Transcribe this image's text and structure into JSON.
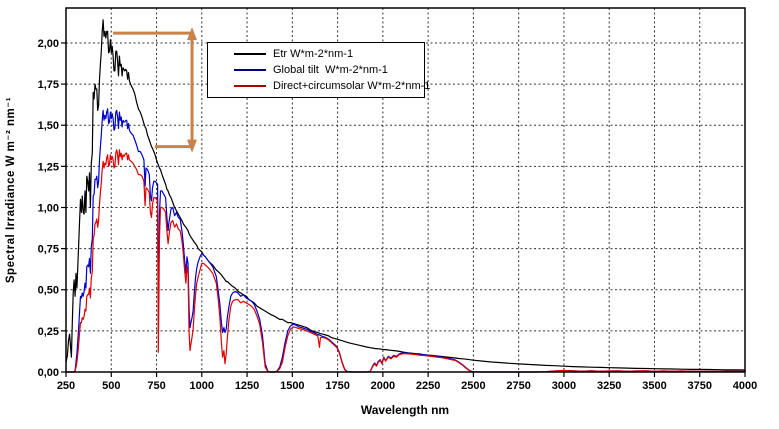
{
  "chart_data": {
    "type": "line",
    "title": "",
    "xlabel": "Wavelength nm",
    "ylabel": "Spectral Irradiance W m⁻² nm⁻¹",
    "xlim": [
      250,
      4000
    ],
    "ylim": [
      0,
      2.2125
    ],
    "y_tick_max": 2.0,
    "grid": "dotted grid on both axes, solid black plot border",
    "background": "#ffffff",
    "x_tick_labels": [
      "250",
      "500",
      "750",
      "1000",
      "1250",
      "1500",
      "1750",
      "2000",
      "2250",
      "2500",
      "2750",
      "3000",
      "3250",
      "3500",
      "3750",
      "4000"
    ],
    "y_tick_labels": [
      "0,00",
      "0,25",
      "0,50",
      "0,75",
      "1,00",
      "1,25",
      "1,50",
      "1,75",
      "2,00"
    ],
    "legend_position": "upper-left inside plot",
    "series": [
      {
        "id": "etr",
        "name": "Etr W*m-2*nm-1",
        "color": "#000000",
        "legend_color": "#000000"
      },
      {
        "id": "global-tilt",
        "name": "Global tilt  W*m-2*nm-1",
        "color": "#0000CC",
        "legend_color": "#000080"
      },
      {
        "id": "direct-circumsolar",
        "name": "Direct+circumsolar W*m-2*nm-1",
        "color": "#E00000",
        "legend_color": "#B00000"
      }
    ],
    "annotation": {
      "type": "vertical-double-arrow",
      "color": "#C8824A",
      "x_nm": 946,
      "y_top": 2.06,
      "y_bottom": 1.37,
      "top_ref_line_from_nm": 510,
      "bottom_ref_line_from_nm": 741
    },
    "points_columns": [
      "wavelength_nm",
      "etr",
      "global_tilt",
      "direct_circumsolar"
    ],
    "points": [
      [
        250,
        0.06,
        0,
        0
      ],
      [
        258,
        0.1,
        0,
        0
      ],
      [
        264,
        0.19,
        0,
        0
      ],
      [
        270,
        0.23,
        0,
        0
      ],
      [
        276,
        0.14,
        0,
        0
      ],
      [
        280,
        0.09,
        0,
        0
      ],
      [
        285,
        0.3,
        0,
        0
      ],
      [
        290,
        0.48,
        0,
        0
      ],
      [
        295,
        0.56,
        0,
        0
      ],
      [
        300,
        0.46,
        0.01,
        0.005
      ],
      [
        305,
        0.6,
        0.06,
        0.03
      ],
      [
        310,
        0.51,
        0.11,
        0.06
      ],
      [
        315,
        0.64,
        0.19,
        0.11
      ],
      [
        320,
        0.78,
        0.27,
        0.17
      ],
      [
        325,
        0.92,
        0.37,
        0.24
      ],
      [
        330,
        1.05,
        0.46,
        0.3
      ],
      [
        335,
        0.97,
        0.45,
        0.3
      ],
      [
        340,
        1.07,
        0.48,
        0.33
      ],
      [
        345,
        0.97,
        0.46,
        0.32
      ],
      [
        350,
        0.96,
        0.49,
        0.34
      ],
      [
        355,
        1.1,
        0.54,
        0.38
      ],
      [
        360,
        0.97,
        0.51,
        0.37
      ],
      [
        365,
        1.19,
        0.64,
        0.46
      ],
      [
        370,
        1.16,
        0.65,
        0.47
      ],
      [
        375,
        1.1,
        0.64,
        0.47
      ],
      [
        380,
        1.21,
        0.69,
        0.51
      ],
      [
        385,
        1.0,
        0.6,
        0.45
      ],
      [
        390,
        1.27,
        0.76,
        0.57
      ],
      [
        395,
        1.33,
        0.81,
        0.61
      ],
      [
        400,
        1.7,
        1.07,
        0.81
      ],
      [
        405,
        1.66,
        1.08,
        0.83
      ],
      [
        410,
        1.75,
        1.17,
        0.9
      ],
      [
        415,
        1.72,
        1.17,
        0.91
      ],
      [
        420,
        1.72,
        1.19,
        0.93
      ],
      [
        425,
        1.59,
        1.12,
        0.88
      ],
      [
        430,
        1.62,
        1.16,
        0.92
      ],
      [
        435,
        1.78,
        1.29,
        1.02
      ],
      [
        440,
        1.87,
        1.37,
        1.09
      ],
      [
        445,
        1.95,
        1.44,
        1.15
      ],
      [
        450,
        2.07,
        1.53,
        1.23
      ],
      [
        455,
        2.14,
        1.59,
        1.28
      ],
      [
        460,
        2.04,
        1.53,
        1.24
      ],
      [
        465,
        2.07,
        1.56,
        1.27
      ],
      [
        470,
        2.03,
        1.54,
        1.26
      ],
      [
        475,
        2.07,
        1.58,
        1.3
      ],
      [
        480,
        2.07,
        1.6,
        1.32
      ],
      [
        485,
        1.94,
        1.51,
        1.25
      ],
      [
        490,
        1.95,
        1.52,
        1.26
      ],
      [
        495,
        2.02,
        1.58,
        1.32
      ],
      [
        500,
        1.94,
        1.54,
        1.29
      ],
      [
        505,
        1.98,
        1.57,
        1.31
      ],
      [
        510,
        1.92,
        1.54,
        1.29
      ],
      [
        515,
        1.83,
        1.47,
        1.24
      ],
      [
        520,
        1.83,
        1.48,
        1.25
      ],
      [
        525,
        1.95,
        1.58,
        1.33
      ],
      [
        530,
        1.95,
        1.59,
        1.35
      ],
      [
        535,
        1.89,
        1.55,
        1.32
      ],
      [
        540,
        1.8,
        1.48,
        1.26
      ],
      [
        545,
        1.92,
        1.58,
        1.35
      ],
      [
        550,
        1.86,
        1.53,
        1.31
      ],
      [
        555,
        1.87,
        1.55,
        1.33
      ],
      [
        560,
        1.8,
        1.49,
        1.29
      ],
      [
        565,
        1.85,
        1.53,
        1.32
      ],
      [
        570,
        1.84,
        1.52,
        1.31
      ],
      [
        575,
        1.83,
        1.52,
        1.32
      ],
      [
        580,
        1.84,
        1.53,
        1.33
      ],
      [
        585,
        1.83,
        1.53,
        1.33
      ],
      [
        590,
        1.78,
        1.48,
        1.29
      ],
      [
        595,
        1.82,
        1.51,
        1.32
      ],
      [
        600,
        1.77,
        1.47,
        1.29
      ],
      [
        610,
        1.74,
        1.45,
        1.28
      ],
      [
        620,
        1.72,
        1.44,
        1.27
      ],
      [
        630,
        1.69,
        1.41,
        1.25
      ],
      [
        640,
        1.64,
        1.38,
        1.23
      ],
      [
        650,
        1.6,
        1.34,
        1.2
      ],
      [
        660,
        1.58,
        1.34,
        1.2
      ],
      [
        670,
        1.55,
        1.32,
        1.19
      ],
      [
        680,
        1.51,
        1.29,
        1.16
      ],
      [
        687,
        1.49,
        1.13,
        1.01
      ],
      [
        692,
        1.48,
        1.24,
        1.12
      ],
      [
        700,
        1.44,
        1.23,
        1.11
      ],
      [
        710,
        1.41,
        1.2,
        1.09
      ],
      [
        716,
        1.39,
        1.07,
        0.97
      ],
      [
        722,
        1.37,
        1.04,
        0.94
      ],
      [
        728,
        1.36,
        1.12,
        1.02
      ],
      [
        735,
        1.34,
        1.16,
        1.06
      ],
      [
        742,
        1.32,
        1.16,
        1.06
      ],
      [
        750,
        1.29,
        1.15,
        1.05
      ],
      [
        756,
        1.27,
        1.14,
        1.04
      ],
      [
        760,
        1.26,
        0.35,
        0.12
      ],
      [
        763,
        1.25,
        0.66,
        0.45
      ],
      [
        766,
        1.24,
        0.95,
        0.8
      ],
      [
        772,
        1.23,
        1.1,
        1.0
      ],
      [
        780,
        1.2,
        1.1,
        1.0
      ],
      [
        790,
        1.17,
        1.08,
        0.99
      ],
      [
        800,
        1.14,
        1.06,
        0.97
      ],
      [
        808,
        1.11,
        0.93,
        0.85
      ],
      [
        814,
        1.1,
        0.86,
        0.78
      ],
      [
        820,
        1.08,
        0.92,
        0.84
      ],
      [
        830,
        1.06,
        0.99,
        0.91
      ],
      [
        840,
        1.03,
        1.0,
        0.92
      ],
      [
        850,
        1.0,
        0.95,
        0.88
      ],
      [
        860,
        0.98,
        0.97,
        0.9
      ],
      [
        870,
        0.96,
        0.94,
        0.87
      ],
      [
        880,
        0.94,
        0.93,
        0.86
      ],
      [
        890,
        0.92,
        0.86,
        0.8
      ],
      [
        898,
        0.9,
        0.78,
        0.72
      ],
      [
        905,
        0.89,
        0.68,
        0.62
      ],
      [
        912,
        0.88,
        0.6,
        0.54
      ],
      [
        918,
        0.87,
        0.7,
        0.64
      ],
      [
        924,
        0.86,
        0.66,
        0.6
      ],
      [
        930,
        0.84,
        0.38,
        0.24
      ],
      [
        935,
        0.83,
        0.27,
        0.13
      ],
      [
        940,
        0.82,
        0.3,
        0.17
      ],
      [
        946,
        0.81,
        0.33,
        0.21
      ],
      [
        952,
        0.8,
        0.37,
        0.26
      ],
      [
        958,
        0.79,
        0.47,
        0.36
      ],
      [
        965,
        0.78,
        0.57,
        0.47
      ],
      [
        972,
        0.77,
        0.63,
        0.54
      ],
      [
        980,
        0.75,
        0.67,
        0.58
      ],
      [
        990,
        0.74,
        0.7,
        0.62
      ],
      [
        1000,
        0.73,
        0.72,
        0.66
      ],
      [
        1010,
        0.71,
        0.71,
        0.66
      ],
      [
        1020,
        0.7,
        0.7,
        0.65
      ],
      [
        1040,
        0.67,
        0.67,
        0.63
      ],
      [
        1060,
        0.65,
        0.64,
        0.6
      ],
      [
        1080,
        0.62,
        0.58,
        0.54
      ],
      [
        1090,
        0.61,
        0.5,
        0.45
      ],
      [
        1100,
        0.6,
        0.41,
        0.33
      ],
      [
        1108,
        0.59,
        0.3,
        0.18
      ],
      [
        1115,
        0.58,
        0.24,
        0.09
      ],
      [
        1122,
        0.57,
        0.27,
        0.13
      ],
      [
        1128,
        0.56,
        0.24,
        0.05
      ],
      [
        1135,
        0.55,
        0.26,
        0.11
      ],
      [
        1142,
        0.55,
        0.34,
        0.22
      ],
      [
        1150,
        0.54,
        0.4,
        0.32
      ],
      [
        1160,
        0.53,
        0.46,
        0.4
      ],
      [
        1170,
        0.52,
        0.48,
        0.43
      ],
      [
        1185,
        0.51,
        0.49,
        0.44
      ],
      [
        1200,
        0.49,
        0.48,
        0.44
      ],
      [
        1215,
        0.48,
        0.46,
        0.42
      ],
      [
        1230,
        0.47,
        0.47,
        0.43
      ],
      [
        1245,
        0.46,
        0.45,
        0.42
      ],
      [
        1260,
        0.44,
        0.44,
        0.41
      ],
      [
        1275,
        0.43,
        0.43,
        0.4
      ],
      [
        1290,
        0.42,
        0.41,
        0.38
      ],
      [
        1305,
        0.4,
        0.37,
        0.34
      ],
      [
        1320,
        0.39,
        0.32,
        0.29
      ],
      [
        1335,
        0.38,
        0.22,
        0.18
      ],
      [
        1350,
        0.37,
        0.05,
        0.03
      ],
      [
        1365,
        0.36,
        0.005,
        0.003
      ],
      [
        1380,
        0.35,
        0,
        0
      ],
      [
        1400,
        0.34,
        0,
        0
      ],
      [
        1415,
        0.33,
        0.005,
        0.003
      ],
      [
        1430,
        0.32,
        0.03,
        0.02
      ],
      [
        1445,
        0.32,
        0.09,
        0.06
      ],
      [
        1460,
        0.31,
        0.18,
        0.15
      ],
      [
        1475,
        0.3,
        0.25,
        0.22
      ],
      [
        1490,
        0.3,
        0.28,
        0.26
      ],
      [
        1505,
        0.295,
        0.29,
        0.275
      ],
      [
        1520,
        0.29,
        0.285,
        0.27
      ],
      [
        1535,
        0.285,
        0.275,
        0.265
      ],
      [
        1550,
        0.28,
        0.27,
        0.26
      ],
      [
        1565,
        0.275,
        0.265,
        0.255
      ],
      [
        1580,
        0.27,
        0.26,
        0.25
      ],
      [
        1600,
        0.255,
        0.248,
        0.24
      ],
      [
        1620,
        0.245,
        0.238,
        0.23
      ],
      [
        1640,
        0.24,
        0.228,
        0.22
      ],
      [
        1650,
        0.235,
        0.225,
        0.15
      ],
      [
        1655,
        0.233,
        0.222,
        0.21
      ],
      [
        1670,
        0.23,
        0.215,
        0.21
      ],
      [
        1685,
        0.225,
        0.21,
        0.205
      ],
      [
        1700,
        0.22,
        0.2,
        0.195
      ],
      [
        1715,
        0.21,
        0.185,
        0.18
      ],
      [
        1730,
        0.205,
        0.17,
        0.165
      ],
      [
        1745,
        0.2,
        0.155,
        0.15
      ],
      [
        1760,
        0.195,
        0.12,
        0.115
      ],
      [
        1775,
        0.19,
        0.06,
        0.055
      ],
      [
        1790,
        0.185,
        0.015,
        0.012
      ],
      [
        1805,
        0.18,
        0.002,
        0.001
      ],
      [
        1820,
        0.175,
        0,
        0
      ],
      [
        1850,
        0.168,
        0,
        0
      ],
      [
        1880,
        0.16,
        0,
        0
      ],
      [
        1910,
        0.152,
        0,
        0
      ],
      [
        1930,
        0.148,
        0.004,
        0.003
      ],
      [
        1945,
        0.145,
        0.04,
        0.036
      ],
      [
        1955,
        0.143,
        0.055,
        0.05
      ],
      [
        1965,
        0.142,
        0.04,
        0.036
      ],
      [
        1975,
        0.141,
        0.065,
        0.06
      ],
      [
        1985,
        0.14,
        0.075,
        0.07
      ],
      [
        1995,
        0.138,
        0.055,
        0.05
      ],
      [
        2005,
        0.137,
        0.09,
        0.085
      ],
      [
        2015,
        0.136,
        0.07,
        0.066
      ],
      [
        2030,
        0.134,
        0.095,
        0.09
      ],
      [
        2045,
        0.132,
        0.085,
        0.08
      ],
      [
        2060,
        0.13,
        0.1,
        0.095
      ],
      [
        2075,
        0.128,
        0.095,
        0.09
      ],
      [
        2090,
        0.125,
        0.11,
        0.105
      ],
      [
        2105,
        0.122,
        0.115,
        0.11
      ],
      [
        2120,
        0.12,
        0.117,
        0.112
      ],
      [
        2140,
        0.117,
        0.114,
        0.11
      ],
      [
        2160,
        0.114,
        0.112,
        0.108
      ],
      [
        2180,
        0.112,
        0.11,
        0.106
      ],
      [
        2200,
        0.11,
        0.107,
        0.103
      ],
      [
        2225,
        0.106,
        0.104,
        0.1
      ],
      [
        2250,
        0.103,
        0.1,
        0.097
      ],
      [
        2275,
        0.1,
        0.098,
        0.094
      ],
      [
        2300,
        0.097,
        0.094,
        0.09
      ],
      [
        2325,
        0.094,
        0.09,
        0.087
      ],
      [
        2350,
        0.091,
        0.086,
        0.082
      ],
      [
        2375,
        0.088,
        0.08,
        0.076
      ],
      [
        2400,
        0.085,
        0.073,
        0.07
      ],
      [
        2420,
        0.082,
        0.06,
        0.057
      ],
      [
        2440,
        0.08,
        0.045,
        0.042
      ],
      [
        2460,
        0.078,
        0.025,
        0.022
      ],
      [
        2480,
        0.075,
        0.008,
        0.006
      ],
      [
        2500,
        0.072,
        0.002,
        0.001
      ],
      [
        2550,
        0.066,
        0,
        0
      ],
      [
        2600,
        0.061,
        0,
        0
      ],
      [
        2650,
        0.057,
        0,
        0
      ],
      [
        2700,
        0.053,
        0,
        0
      ],
      [
        2750,
        0.049,
        0,
        0
      ],
      [
        2800,
        0.046,
        0,
        0
      ],
      [
        2850,
        0.043,
        0,
        0
      ],
      [
        2900,
        0.04,
        0.002,
        0.002
      ],
      [
        2950,
        0.038,
        0.006,
        0.006
      ],
      [
        3000,
        0.035,
        0.009,
        0.009
      ],
      [
        3050,
        0.033,
        0.007,
        0.007
      ],
      [
        3100,
        0.031,
        0.005,
        0.005
      ],
      [
        3150,
        0.029,
        0.007,
        0.007
      ],
      [
        3200,
        0.028,
        0.005,
        0.005
      ],
      [
        3250,
        0.026,
        0.006,
        0.006
      ],
      [
        3300,
        0.025,
        0.007,
        0.007
      ],
      [
        3350,
        0.024,
        0.005,
        0.005
      ],
      [
        3400,
        0.022,
        0.006,
        0.006
      ],
      [
        3450,
        0.021,
        0.007,
        0.007
      ],
      [
        3500,
        0.02,
        0.005,
        0.005
      ],
      [
        3550,
        0.019,
        0.006,
        0.006
      ],
      [
        3600,
        0.018,
        0.005,
        0.005
      ],
      [
        3650,
        0.017,
        0.006,
        0.006
      ],
      [
        3700,
        0.016,
        0.005,
        0.005
      ],
      [
        3750,
        0.0155,
        0.005,
        0.005
      ],
      [
        3800,
        0.015,
        0.004,
        0.004
      ],
      [
        3850,
        0.014,
        0.004,
        0.004
      ],
      [
        3900,
        0.013,
        0.004,
        0.004
      ],
      [
        3950,
        0.0125,
        0.004,
        0.004
      ],
      [
        4000,
        0.012,
        0.004,
        0.004
      ]
    ]
  }
}
